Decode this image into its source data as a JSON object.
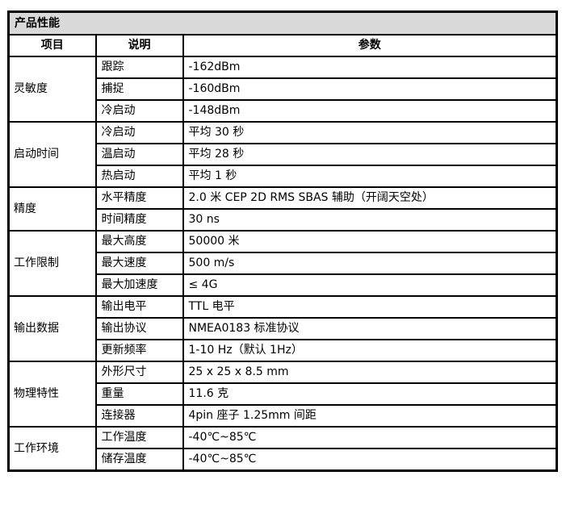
{
  "table": {
    "title": "产品性能",
    "headers": [
      "项目",
      "说明",
      "参数"
    ],
    "groups": [
      {
        "name": "灵敏度",
        "rows": [
          [
            "跟踪",
            "-162dBm"
          ],
          [
            "捕捉",
            "-160dBm"
          ],
          [
            "冷启动",
            "-148dBm"
          ]
        ]
      },
      {
        "name": "启动时间",
        "rows": [
          [
            "冷启动",
            "平均 30 秒"
          ],
          [
            "温启动",
            "平均 28 秒"
          ],
          [
            "热启动",
            "平均 1 秒"
          ]
        ]
      },
      {
        "name": "精度",
        "rows": [
          [
            "水平精度",
            "2.0 米 CEP 2D RMS SBAS 辅助（开阔天空处）"
          ],
          [
            "时间精度",
            "30 ns"
          ]
        ]
      },
      {
        "name": "工作限制",
        "rows": [
          [
            "最大高度",
            "50000 米"
          ],
          [
            "最大速度",
            "500 m/s"
          ],
          [
            "最大加速度",
            "≤  4G"
          ]
        ]
      },
      {
        "name": "输出数据",
        "rows": [
          [
            "输出电平",
            "TTL 电平"
          ],
          [
            "输出协议",
            "NMEA0183 标准协议"
          ],
          [
            "更新频率",
            "1-10 Hz（默认 1Hz）"
          ]
        ]
      },
      {
        "name": "物理特性",
        "rows": [
          [
            "外形尺寸",
            "25 x 25 x 8.5 mm"
          ],
          [
            "重量",
            "11.6 克"
          ],
          [
            "连接器",
            "4pin 座子 1.25mm 间距"
          ]
        ]
      },
      {
        "name": "工作环境",
        "rows": [
          [
            "工作温度",
            "-40℃~85℃"
          ],
          [
            "储存温度",
            "-40℃~85℃"
          ]
        ]
      }
    ]
  }
}
